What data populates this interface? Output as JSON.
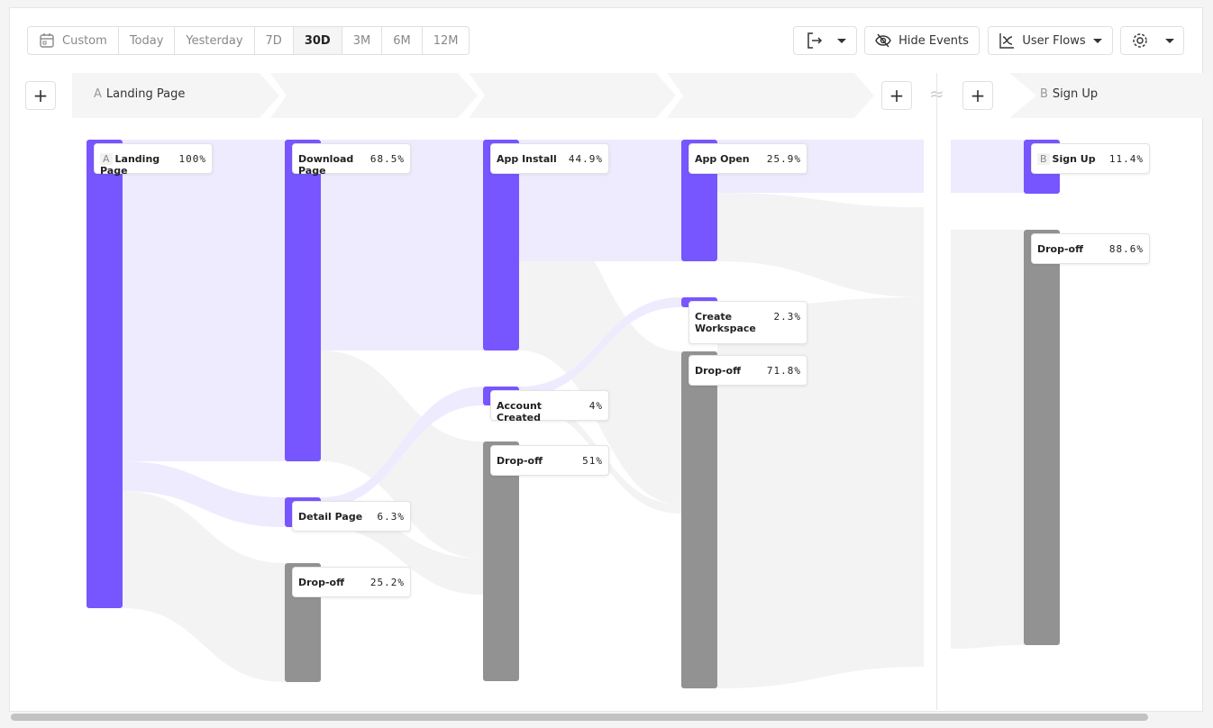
{
  "toolbar": {
    "date_ranges": [
      "Custom",
      "Today",
      "Yesterday",
      "7D",
      "30D",
      "3M",
      "6M",
      "12M"
    ],
    "active_range": "30D",
    "hide_events": "Hide Events",
    "user_flows": "User Flows",
    "icons": [
      "calendar-icon",
      "export-icon",
      "eye-off-icon",
      "flows-icon",
      "gear-icon"
    ]
  },
  "steps": {
    "a_letter": "A",
    "a_label": "Landing Page",
    "b_letter": "B",
    "b_label": "Sign Up",
    "plus": "+",
    "gap": "≈"
  },
  "colors": {
    "event": "#7856ff",
    "dropoff": "#929292",
    "flow": "#eeebff",
    "dropflow": "#f3f3f3"
  },
  "chart_data": {
    "type": "sankey",
    "nodes": [
      {
        "id": "lp",
        "letter": "A",
        "label": "Landing Page",
        "pct": "100%",
        "kind": "event"
      },
      {
        "id": "dp",
        "label": "Download Page",
        "pct": "68.5%",
        "kind": "event"
      },
      {
        "id": "det",
        "label": "Detail Page",
        "pct": "6.3%",
        "kind": "event"
      },
      {
        "id": "d2",
        "label": "Drop-off",
        "pct": "25.2%",
        "kind": "dropoff"
      },
      {
        "id": "ai",
        "label": "App Install",
        "pct": "44.9%",
        "kind": "event"
      },
      {
        "id": "ac",
        "label": "Account Created",
        "pct": "4%",
        "kind": "event"
      },
      {
        "id": "d3",
        "label": "Drop-off",
        "pct": "51%",
        "kind": "dropoff"
      },
      {
        "id": "ao",
        "label": "App Open",
        "pct": "25.9%",
        "kind": "event"
      },
      {
        "id": "cw",
        "label": "Create Workspace",
        "pct": "2.3%",
        "kind": "event"
      },
      {
        "id": "d4",
        "label": "Drop-off",
        "pct": "71.8%",
        "kind": "dropoff"
      },
      {
        "id": "su",
        "letter": "B",
        "label": "Sign Up",
        "pct": "11.4%",
        "kind": "event"
      },
      {
        "id": "d5",
        "label": "Drop-off",
        "pct": "88.6%",
        "kind": "dropoff"
      }
    ]
  }
}
